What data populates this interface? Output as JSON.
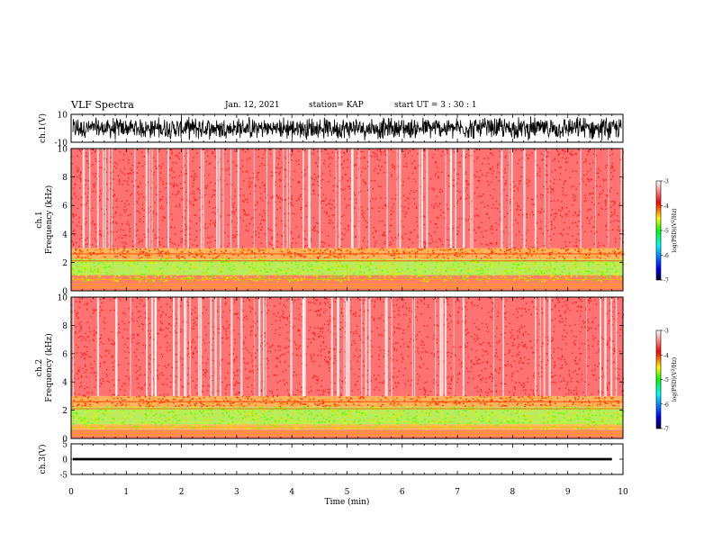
{
  "header": {
    "title": "VLF Spectra",
    "date": "Jan. 12, 2021",
    "station": "station= KAP",
    "start_ut": "start  UT =   3  : 30 : 1"
  },
  "chart_data": [
    {
      "type": "line",
      "panel": "waveform-ch1",
      "ylabel": "ch.1(V)",
      "yticks": [
        "10",
        "-10"
      ],
      "ylim": [
        -10,
        10
      ],
      "xlim": [
        0,
        10
      ],
      "note_color": "#000000"
    },
    {
      "type": "heatmap",
      "panel": "spectrogram-ch1",
      "ylabel": "ch.1\nFrequency (kHz)",
      "ylabel_lines": [
        "ch.1",
        "Frequency (kHz)"
      ],
      "yticks": [
        "0",
        "2",
        "4",
        "6",
        "8",
        "10"
      ],
      "ylim": [
        0,
        10
      ],
      "xlim": [
        0,
        10
      ],
      "dominant_level_above_3kHz": -3.2,
      "band_levels": [
        {
          "freq_range": [
            0.0,
            0.6
          ],
          "level": -3.5
        },
        {
          "freq_range": [
            0.6,
            1.1
          ],
          "level": -3.4
        },
        {
          "freq_range": [
            1.1,
            2.2
          ],
          "level": -4.6
        },
        {
          "freq_range": [
            2.2,
            3.0
          ],
          "level": -4.0
        },
        {
          "freq_range": [
            3.0,
            10.0
          ],
          "level": -3.2
        }
      ]
    },
    {
      "type": "heatmap",
      "panel": "spectrogram-ch2",
      "ylabel_lines": [
        "ch.2",
        "Frequency (kHz)"
      ],
      "yticks": [
        "0",
        "2",
        "4",
        "6",
        "8",
        "10"
      ],
      "ylim": [
        0,
        10
      ],
      "xlim": [
        0,
        10
      ],
      "dominant_level_above_3kHz": -3.2,
      "band_levels": [
        {
          "freq_range": [
            0.0,
            0.6
          ],
          "level": -3.5
        },
        {
          "freq_range": [
            0.6,
            1.0
          ],
          "level": -4.0
        },
        {
          "freq_range": [
            1.0,
            2.2
          ],
          "level": -4.7
        },
        {
          "freq_range": [
            2.2,
            3.0
          ],
          "level": -4.1
        },
        {
          "freq_range": [
            3.0,
            10.0
          ],
          "level": -3.2
        }
      ]
    },
    {
      "type": "line",
      "panel": "waveform-ch3",
      "ylabel": "ch.3(V)",
      "yticks": [
        "5",
        "0",
        "-5"
      ],
      "ylim": [
        -5,
        5
      ],
      "xlim": [
        0,
        9.8
      ],
      "approx_level": 0,
      "xlabel": "Time (min)",
      "xticks": [
        "0",
        "1",
        "2",
        "3",
        "4",
        "5",
        "6",
        "7",
        "8",
        "9",
        "10"
      ]
    }
  ],
  "colorbar": {
    "label": "log(PSD)(V²/Hz)",
    "label_parts": [
      "log(PSD)(V",
      "2",
      "/Hz)"
    ],
    "ticks": [
      "-3",
      "-4",
      "-5",
      "-6",
      "-7"
    ],
    "range": [
      -7,
      -3
    ],
    "colors": [
      "#000033",
      "#0000ff",
      "#00ffff",
      "#00ff00",
      "#ffff00",
      "#ff0000",
      "#ffffff"
    ]
  }
}
